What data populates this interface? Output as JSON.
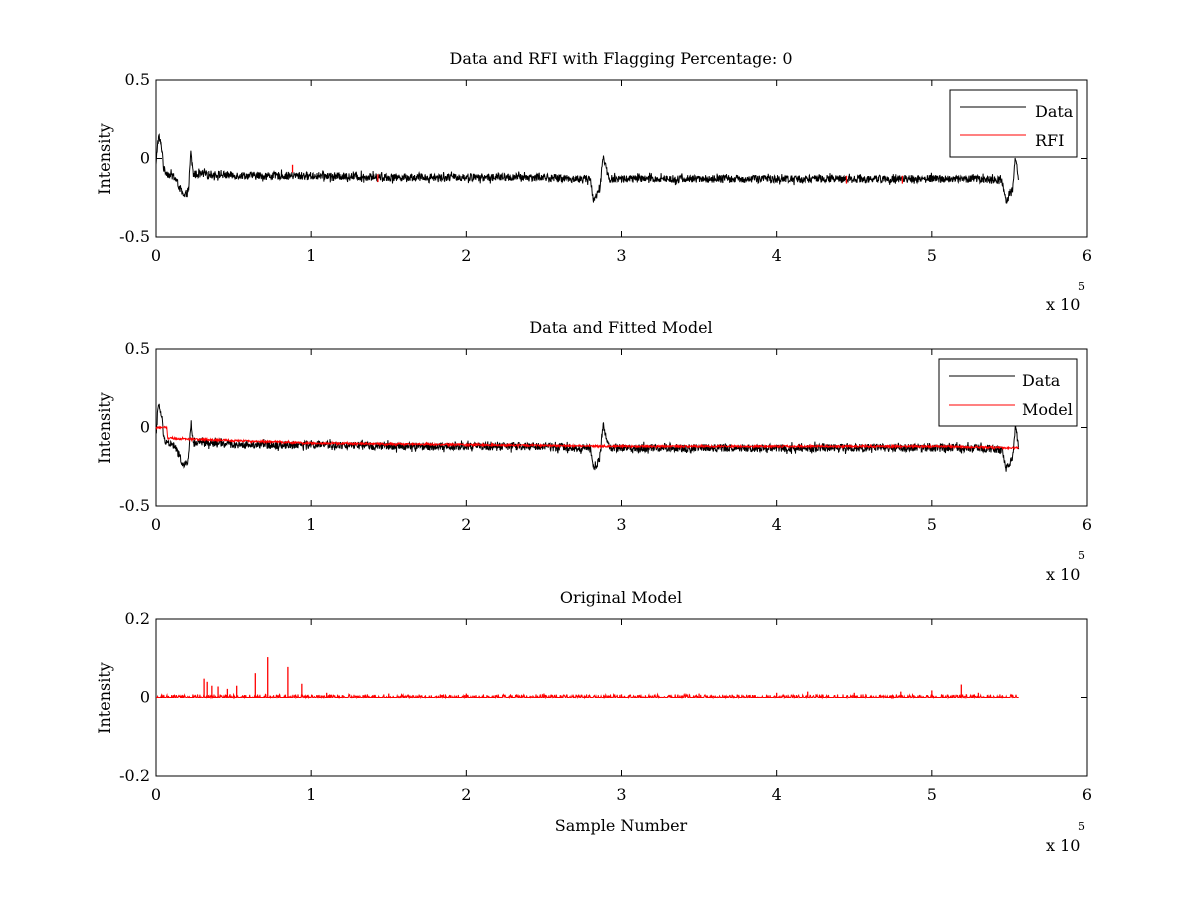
{
  "figure": {
    "background": "#ffffff",
    "colors": {
      "data": "#000000",
      "rfi": "#ff0000",
      "model": "#ff0000",
      "axes": "#000000"
    }
  },
  "chart_data": [
    {
      "type": "line",
      "title": "Data and RFI with Flagging Percentage: 0",
      "xlabel": "",
      "ylabel": "Intensity",
      "xlim": [
        0,
        600000
      ],
      "ylim": [
        -0.5,
        0.5
      ],
      "xticks": [
        0,
        1,
        2,
        3,
        4,
        5,
        6
      ],
      "yticks": [
        -0.5,
        0,
        0.5
      ],
      "x_exponent": {
        "base": "x 10",
        "power": "5"
      },
      "grid": false,
      "legend_position": "top-right",
      "series": [
        {
          "name": "Data",
          "color": "#000000",
          "x": [
            0,
            1000,
            2000,
            4000,
            5000,
            8000,
            12000,
            16000,
            18000,
            21000,
            22500,
            24000,
            30000,
            60000,
            100000,
            150000,
            200000,
            250000,
            270000,
            280000,
            282000,
            286000,
            288000,
            292000,
            300000,
            350000,
            400000,
            450000,
            500000,
            530000,
            545000,
            548000,
            552000,
            554000,
            556000
          ],
          "y": [
            -0.05,
            0.1,
            0.14,
            0.05,
            -0.07,
            -0.1,
            -0.12,
            -0.2,
            -0.25,
            -0.2,
            0.04,
            -0.1,
            -0.1,
            -0.11,
            -0.11,
            -0.12,
            -0.12,
            -0.12,
            -0.13,
            -0.13,
            -0.27,
            -0.2,
            0.02,
            -0.13,
            -0.13,
            -0.13,
            -0.13,
            -0.13,
            -0.13,
            -0.13,
            -0.14,
            -0.27,
            -0.2,
            0.02,
            -0.14
          ],
          "noise_amplitude": 0.025
        },
        {
          "name": "RFI",
          "color": "#ff0000",
          "spikes": [
            {
              "x": 88000,
              "y": -0.09
            },
            {
              "x": 143000,
              "y": -0.15
            },
            {
              "x": 445000,
              "y": -0.16
            },
            {
              "x": 481000,
              "y": -0.16
            }
          ]
        }
      ]
    },
    {
      "type": "line",
      "title": "Data and Fitted Model",
      "xlabel": "",
      "ylabel": "Intensity",
      "xlim": [
        0,
        600000
      ],
      "ylim": [
        -0.5,
        0.5
      ],
      "xticks": [
        0,
        1,
        2,
        3,
        4,
        5,
        6
      ],
      "yticks": [
        -0.5,
        0,
        0.5
      ],
      "x_exponent": {
        "base": "x 10",
        "power": "5"
      },
      "grid": false,
      "legend_position": "top-right",
      "series": [
        {
          "name": "Data",
          "color": "#000000",
          "x": [
            0,
            1000,
            2000,
            4000,
            5000,
            8000,
            12000,
            16000,
            18000,
            21000,
            22500,
            24000,
            30000,
            60000,
            100000,
            150000,
            200000,
            250000,
            270000,
            280000,
            282000,
            286000,
            288000,
            292000,
            300000,
            350000,
            400000,
            450000,
            500000,
            530000,
            545000,
            548000,
            552000,
            554000,
            556000
          ],
          "y": [
            -0.05,
            0.1,
            0.14,
            0.05,
            -0.07,
            -0.1,
            -0.12,
            -0.2,
            -0.25,
            -0.2,
            0.04,
            -0.1,
            -0.1,
            -0.11,
            -0.11,
            -0.12,
            -0.12,
            -0.12,
            -0.13,
            -0.13,
            -0.27,
            -0.2,
            0.02,
            -0.13,
            -0.13,
            -0.13,
            -0.13,
            -0.13,
            -0.13,
            -0.13,
            -0.14,
            -0.27,
            -0.2,
            0.02,
            -0.14
          ],
          "noise_amplitude": 0.025
        },
        {
          "name": "Model",
          "color": "#ff0000",
          "x": [
            0,
            7000,
            7500,
            10000,
            100000,
            200000,
            300000,
            400000,
            500000,
            556000
          ],
          "y": [
            0.0,
            0.0,
            -0.07,
            -0.07,
            -0.1,
            -0.11,
            -0.12,
            -0.12,
            -0.12,
            -0.13
          ],
          "noise_amplitude": 0.006
        }
      ]
    },
    {
      "type": "line",
      "title": "Original Model",
      "xlabel": "Sample Number",
      "ylabel": "Intensity",
      "xlim": [
        0,
        600000
      ],
      "ylim": [
        -0.2,
        0.2
      ],
      "xticks": [
        0,
        1,
        2,
        3,
        4,
        5,
        6
      ],
      "yticks": [
        -0.2,
        0,
        0.2
      ],
      "x_exponent": {
        "base": "x 10",
        "power": "5"
      },
      "grid": false,
      "series": [
        {
          "name": "",
          "color": "#ff0000",
          "baseline": 0.0,
          "x_end": 556000,
          "spikes": [
            {
              "x": 31000,
              "y": 0.048
            },
            {
              "x": 33000,
              "y": 0.04
            },
            {
              "x": 36000,
              "y": 0.03
            },
            {
              "x": 40000,
              "y": 0.028
            },
            {
              "x": 46000,
              "y": 0.022
            },
            {
              "x": 52000,
              "y": 0.03
            },
            {
              "x": 64000,
              "y": 0.062
            },
            {
              "x": 72000,
              "y": 0.103
            },
            {
              "x": 85000,
              "y": 0.078
            },
            {
              "x": 94000,
              "y": 0.035
            },
            {
              "x": 110000,
              "y": 0.012
            },
            {
              "x": 150000,
              "y": 0.01
            },
            {
              "x": 200000,
              "y": 0.01
            },
            {
              "x": 250000,
              "y": 0.01
            },
            {
              "x": 300000,
              "y": 0.008
            },
            {
              "x": 350000,
              "y": 0.01
            },
            {
              "x": 400000,
              "y": 0.012
            },
            {
              "x": 420000,
              "y": 0.015
            },
            {
              "x": 450000,
              "y": 0.012
            },
            {
              "x": 480000,
              "y": 0.015
            },
            {
              "x": 500000,
              "y": 0.018
            },
            {
              "x": 519000,
              "y": 0.033
            },
            {
              "x": 530000,
              "y": 0.012
            }
          ],
          "noise_amplitude": 0.008
        }
      ]
    }
  ]
}
